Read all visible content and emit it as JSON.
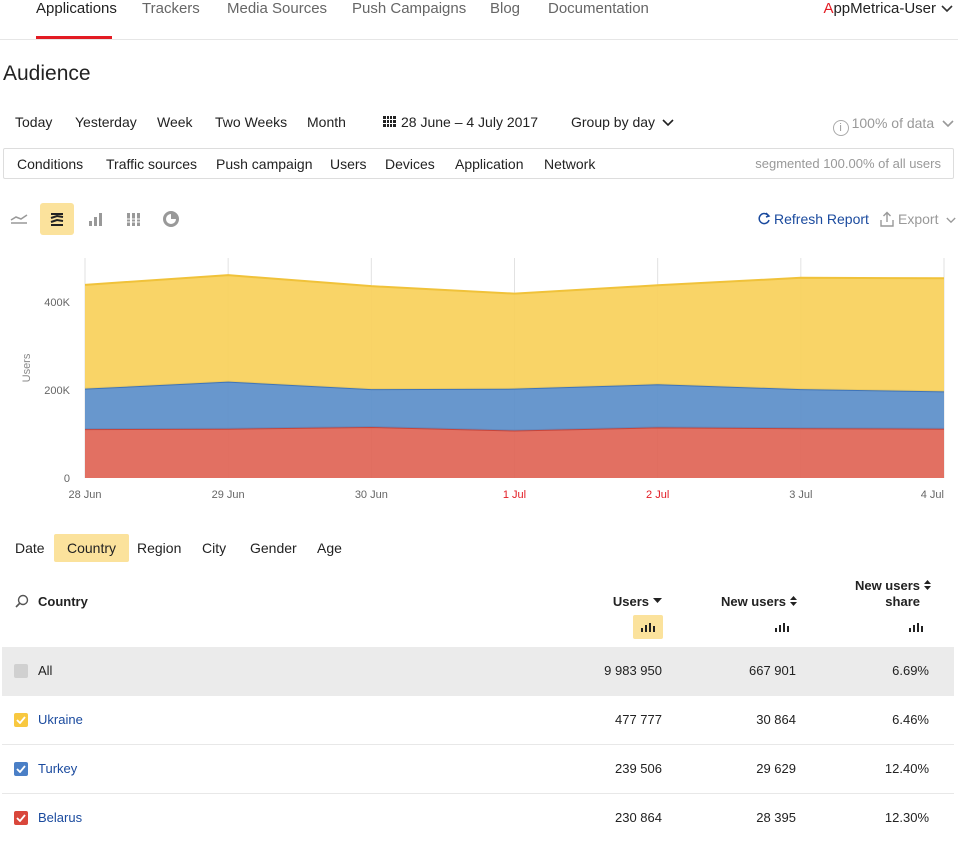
{
  "nav": {
    "tabs": [
      "Applications",
      "Trackers",
      "Media Sources",
      "Push Campaigns",
      "Blog",
      "Documentation"
    ],
    "active_tab": "Applications",
    "user_first_letter": "A",
    "user_rest": "ppMetrica-User",
    "accent_color": "#e31b23"
  },
  "page": {
    "title": "Audience"
  },
  "period": {
    "presets": [
      "Today",
      "Yesterday",
      "Week",
      "Two Weeks",
      "Month"
    ],
    "date_range": "28 June – 4 July 2017",
    "group_by": "Group by day",
    "data_quality": "100% of data",
    "calendar_icon": "calendar-grid-icon"
  },
  "segments": {
    "items": [
      "Conditions",
      "Traffic sources",
      "Push campaign",
      "Users",
      "Devices",
      "Application",
      "Network"
    ],
    "note": "segmented 100.00% of all users"
  },
  "chart_toolbar": {
    "icons": [
      "line-chart-icon",
      "stacked-area-icon",
      "bar-chart-icon",
      "stacked-bar-icon",
      "pie-chart-icon"
    ],
    "active_icon": "stacked-area-icon",
    "refresh_label": "Refresh Report",
    "export_label": "Export"
  },
  "chart_data": {
    "type": "area",
    "stacked": true,
    "x": [
      "28 Jun",
      "29 Jun",
      "30 Jun",
      "1 Jul",
      "2 Jul",
      "3 Jul",
      "4 Jul"
    ],
    "weekend_labels": [
      "1 Jul",
      "2 Jul"
    ],
    "ylabel": "Users",
    "yticks": [
      "0",
      "200K",
      "400K"
    ],
    "ylim": [
      0,
      500000
    ],
    "grid": true,
    "series": [
      {
        "name": "Belarus",
        "color": "#e06455",
        "values": [
          111000,
          112000,
          116000,
          108000,
          115000,
          113000,
          112000
        ]
      },
      {
        "name": "Turkey",
        "color": "#5b8ec9",
        "values": [
          92000,
          107000,
          86000,
          95000,
          98000,
          89000,
          85000
        ]
      },
      {
        "name": "Ukraine",
        "color": "#f8d05a",
        "values": [
          236000,
          242000,
          234000,
          216000,
          225000,
          253000,
          257000
        ]
      }
    ]
  },
  "dimensions": {
    "tabs": [
      "Date",
      "Country",
      "Region",
      "City",
      "Gender",
      "Age"
    ],
    "active": "Country"
  },
  "table": {
    "col_country": "Country",
    "col_users": "Users",
    "col_new_users": "New users",
    "col_share_line1": "New users",
    "col_share_line2": "share",
    "rows": [
      {
        "name": "All",
        "users": "9 983 950",
        "new_users": "667 901",
        "share": "6.69%",
        "color": "#d0d0d0"
      },
      {
        "name": "Ukraine",
        "users": "477 777",
        "new_users": "30 864",
        "share": "6.46%",
        "color": "#f8c840"
      },
      {
        "name": "Turkey",
        "users": "239 506",
        "new_users": "29 629",
        "share": "12.40%",
        "color": "#4a7fc6"
      },
      {
        "name": "Belarus",
        "users": "230 864",
        "new_users": "28 395",
        "share": "12.30%",
        "color": "#d9473b"
      }
    ]
  }
}
